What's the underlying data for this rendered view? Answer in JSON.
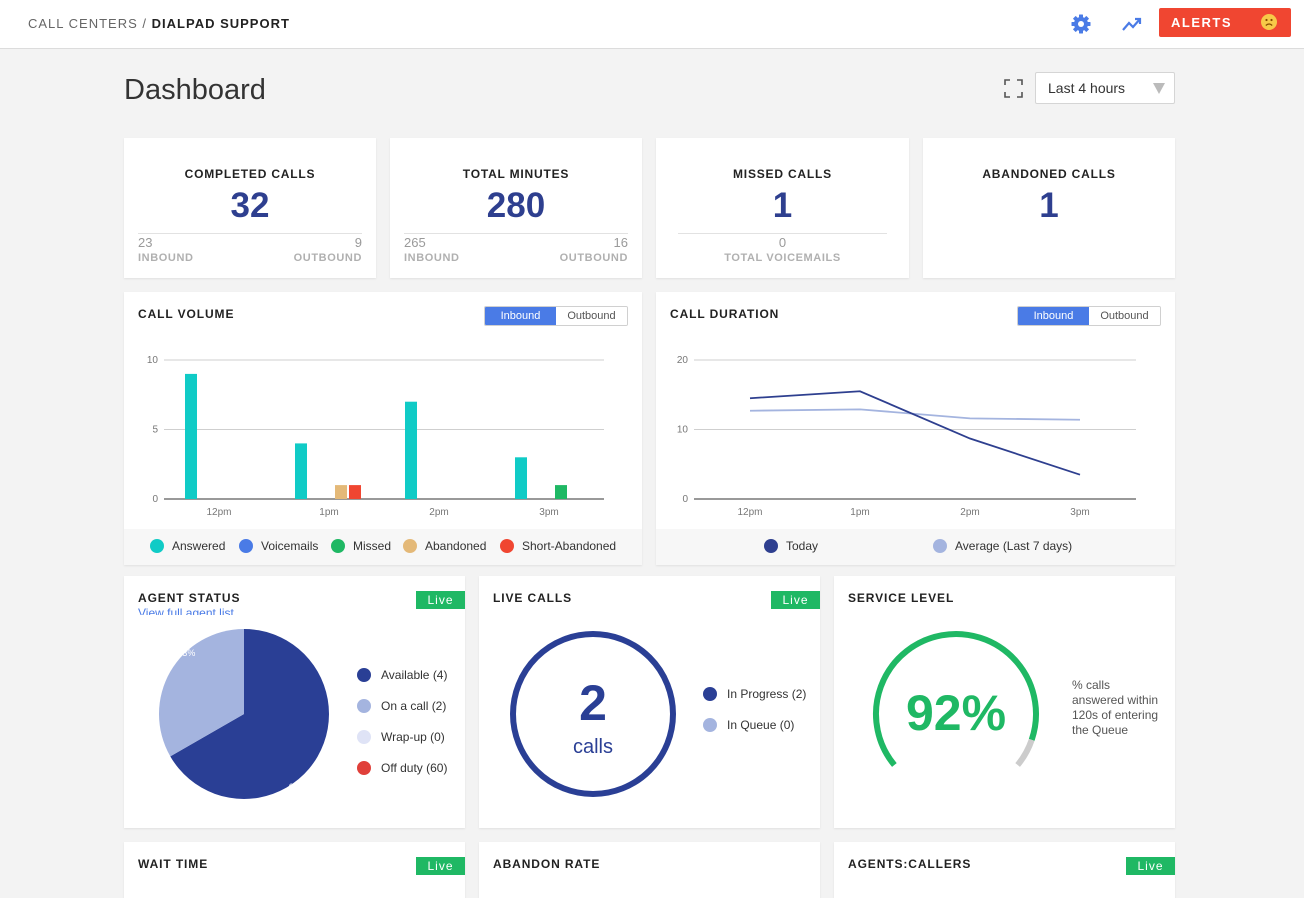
{
  "header": {
    "breadcrumb_parent": "CALL CENTERS",
    "breadcrumb_sep": "/",
    "breadcrumb_current": "DIALPAD SUPPORT",
    "icons": [
      "gear-icon",
      "trend-icon"
    ],
    "alerts_label": "ALERTS",
    "alerts_icon": "frown-face-icon",
    "alerts_color": "#f04631"
  },
  "page": {
    "title": "Dashboard",
    "range": "Last 4 hours"
  },
  "stats": {
    "completed": {
      "label": "COMPLETED CALLS",
      "value": "32",
      "left_num": "23",
      "left_label": "INBOUND",
      "right_num": "9",
      "right_label": "OUTBOUND"
    },
    "minutes": {
      "label": "TOTAL MINUTES",
      "value": "280",
      "left_num": "265",
      "left_label": "INBOUND",
      "right_num": "16",
      "right_label": "OUTBOUND"
    },
    "missed": {
      "label": "MISSED CALLS",
      "value": "1",
      "sub_num": "0",
      "sub_label": "TOTAL VOICEMAILS"
    },
    "abandoned": {
      "label": "ABANDONED CALLS",
      "value": "1"
    }
  },
  "call_volume": {
    "title": "CALL VOLUME",
    "toggle_on": "Inbound",
    "toggle_off": "Outbound",
    "legend": [
      {
        "label": "Answered",
        "color": "#10cbc6"
      },
      {
        "label": "Voicemails",
        "color": "#4a7be6"
      },
      {
        "label": "Missed",
        "color": "#1fb864"
      },
      {
        "label": "Abandoned",
        "color": "#e4b978"
      },
      {
        "label": "Short-Abandoned",
        "color": "#f04631"
      }
    ]
  },
  "call_duration": {
    "title": "CALL DURATION",
    "toggle_on": "Inbound",
    "toggle_off": "Outbound",
    "legend": [
      {
        "label": "Today",
        "color": "#2e3f8f"
      },
      {
        "label": "Average (Last 7 days)",
        "color": "#a4b4df"
      }
    ]
  },
  "agent_status": {
    "title": "AGENT STATUS",
    "link": "View full agent list",
    "live": "Live",
    "legend": [
      {
        "label": "Available (4)",
        "color": "#2a3f95"
      },
      {
        "label": "On a call (2)",
        "color": "#a4b4df"
      },
      {
        "label": "Wrap-up (0)",
        "color": "#dfe3f6"
      },
      {
        "label": "Off duty (60)",
        "color": "#e0403a"
      }
    ]
  },
  "live_calls": {
    "title": "LIVE CALLS",
    "live": "Live",
    "count": "2",
    "unit": "calls",
    "legend": [
      {
        "label": "In Progress (2)",
        "color": "#2a3f95"
      },
      {
        "label": "In Queue (0)",
        "color": "#a4b4df"
      }
    ]
  },
  "service_level": {
    "title": "SERVICE LEVEL",
    "value_text": "92%",
    "value": 0.92,
    "note": "% calls answered within 120s of entering the Queue",
    "color": "#1fb864"
  },
  "bottom": {
    "wait_time": {
      "title": "WAIT TIME",
      "live": "Live"
    },
    "abandon_rate": {
      "title": "ABANDON RATE"
    },
    "agents_callers": {
      "title": "AGENTS:CALLERS",
      "live": "Live"
    }
  },
  "chart_data": [
    {
      "type": "bar",
      "title": "CALL VOLUME",
      "categories": [
        "12pm",
        "1pm",
        "2pm",
        "3pm"
      ],
      "ylim": [
        0,
        10
      ],
      "yticks": [
        0,
        5,
        10
      ],
      "series": [
        {
          "name": "Answered",
          "color": "#10cbc6",
          "values": [
            9,
            4,
            7,
            3
          ]
        },
        {
          "name": "Voicemails",
          "color": "#4a7be6",
          "values": [
            0,
            0,
            0,
            0
          ]
        },
        {
          "name": "Missed",
          "color": "#1fb864",
          "values": [
            0,
            0,
            0,
            1
          ]
        },
        {
          "name": "Abandoned",
          "color": "#e4b978",
          "values": [
            0,
            1,
            0,
            0
          ]
        },
        {
          "name": "Short-Abandoned",
          "color": "#f04631",
          "values": [
            0,
            1,
            0,
            0
          ]
        }
      ],
      "grid": true,
      "legend": "bottom"
    },
    {
      "type": "line",
      "title": "CALL DURATION",
      "categories": [
        "12pm",
        "1pm",
        "2pm",
        "3pm"
      ],
      "ylim": [
        0,
        20
      ],
      "yticks": [
        0,
        10,
        20
      ],
      "series": [
        {
          "name": "Today",
          "color": "#2e3f8f",
          "values": [
            14.5,
            15.5,
            8.7,
            3.5
          ]
        },
        {
          "name": "Average (Last 7 days)",
          "color": "#a4b4df",
          "values": [
            12.7,
            12.9,
            11.6,
            11.4
          ]
        }
      ],
      "grid": true,
      "legend": "bottom"
    },
    {
      "type": "pie",
      "title": "AGENT STATUS",
      "slices": [
        {
          "name": "Available (4)",
          "value": 66.7,
          "label": "66.7%",
          "color": "#2a3f95"
        },
        {
          "name": "On a call (2)",
          "value": 33.3,
          "label": "33.3%",
          "color": "#a4b4df"
        }
      ]
    }
  ]
}
